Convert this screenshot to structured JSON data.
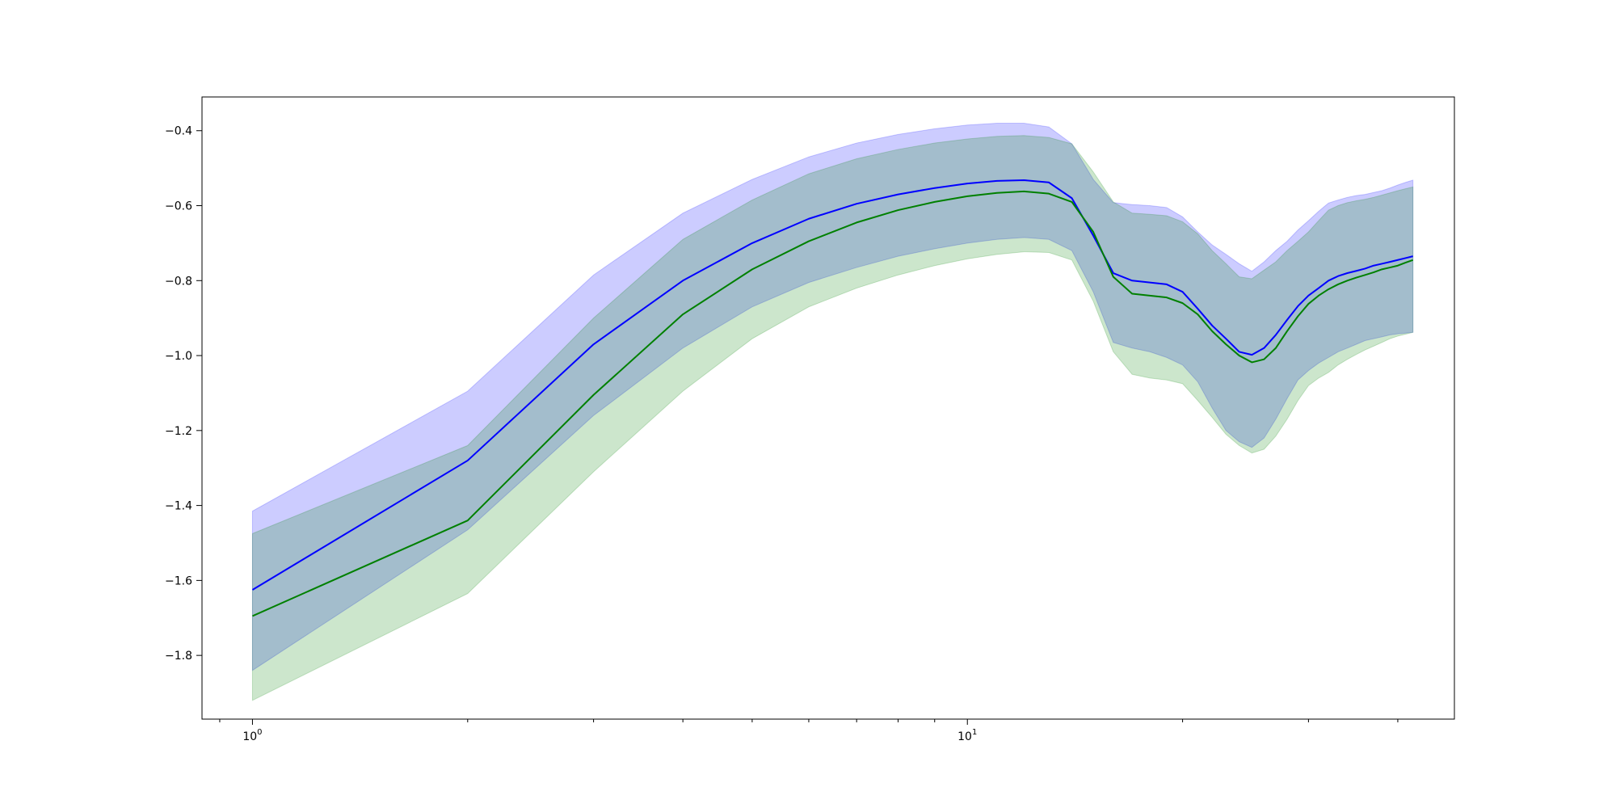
{
  "chart_data": {
    "type": "line",
    "xscale": "log",
    "xlim": [
      0.85,
      48
    ],
    "ylim": [
      -1.97,
      -0.31
    ],
    "grid": false,
    "xticks": [
      {
        "value": 1,
        "base": "10",
        "exp": "0"
      },
      {
        "value": 10,
        "base": "10",
        "exp": "1"
      }
    ],
    "yticks": [
      {
        "value": -0.4,
        "label": "−0.4"
      },
      {
        "value": -0.6,
        "label": "−0.6"
      },
      {
        "value": -0.8,
        "label": "−0.8"
      },
      {
        "value": -1.0,
        "label": "−1.0"
      },
      {
        "value": -1.2,
        "label": "−1.2"
      },
      {
        "value": -1.4,
        "label": "−1.4"
      },
      {
        "value": -1.6,
        "label": "−1.6"
      },
      {
        "value": -1.8,
        "label": "−1.8"
      }
    ],
    "x": [
      1,
      2,
      3,
      4,
      5,
      6,
      7,
      8,
      9,
      10,
      11,
      12,
      13,
      14,
      15,
      16,
      17,
      18,
      19,
      20,
      21,
      22,
      23,
      24,
      25,
      26,
      27,
      28,
      29,
      30,
      31,
      32,
      33,
      34,
      35,
      36,
      37,
      38,
      39,
      40,
      41,
      42
    ],
    "series": [
      {
        "color": "#0000ff",
        "band_color": "#0000ff",
        "band_opacity": 0.2,
        "mean": [
          -1.625,
          -1.28,
          -0.97,
          -0.8,
          -0.7,
          -0.635,
          -0.595,
          -0.57,
          -0.553,
          -0.541,
          -0.534,
          -0.532,
          -0.538,
          -0.58,
          -0.68,
          -0.78,
          -0.8,
          -0.805,
          -0.81,
          -0.83,
          -0.875,
          -0.92,
          -0.955,
          -0.99,
          -0.998,
          -0.98,
          -0.945,
          -0.905,
          -0.868,
          -0.84,
          -0.82,
          -0.8,
          -0.788,
          -0.78,
          -0.774,
          -0.768,
          -0.76,
          -0.755,
          -0.75,
          -0.745,
          -0.74,
          -0.735
        ],
        "upper": [
          -1.415,
          -1.095,
          -0.785,
          -0.62,
          -0.53,
          -0.47,
          -0.433,
          -0.41,
          -0.395,
          -0.385,
          -0.38,
          -0.38,
          -0.39,
          -0.435,
          -0.53,
          -0.592,
          -0.597,
          -0.6,
          -0.605,
          -0.63,
          -0.67,
          -0.705,
          -0.73,
          -0.755,
          -0.775,
          -0.75,
          -0.72,
          -0.695,
          -0.665,
          -0.64,
          -0.615,
          -0.593,
          -0.585,
          -0.578,
          -0.573,
          -0.57,
          -0.565,
          -0.56,
          -0.553,
          -0.545,
          -0.538,
          -0.532
        ],
        "lower": [
          -1.84,
          -1.465,
          -1.16,
          -0.98,
          -0.87,
          -0.805,
          -0.765,
          -0.735,
          -0.715,
          -0.7,
          -0.69,
          -0.685,
          -0.69,
          -0.72,
          -0.83,
          -0.965,
          -0.98,
          -0.99,
          -1.005,
          -1.025,
          -1.07,
          -1.14,
          -1.2,
          -1.23,
          -1.245,
          -1.22,
          -1.17,
          -1.115,
          -1.065,
          -1.04,
          -1.02,
          -1.005,
          -0.99,
          -0.98,
          -0.97,
          -0.96,
          -0.955,
          -0.95,
          -0.945,
          -0.942,
          -0.94,
          -0.938
        ]
      },
      {
        "color": "#008000",
        "band_color": "#008000",
        "band_opacity": 0.2,
        "mean": [
          -1.695,
          -1.44,
          -1.105,
          -0.89,
          -0.77,
          -0.695,
          -0.645,
          -0.612,
          -0.59,
          -0.575,
          -0.566,
          -0.562,
          -0.568,
          -0.59,
          -0.67,
          -0.79,
          -0.835,
          -0.84,
          -0.845,
          -0.86,
          -0.89,
          -0.935,
          -0.97,
          -1.0,
          -1.018,
          -1.01,
          -0.98,
          -0.935,
          -0.895,
          -0.862,
          -0.84,
          -0.823,
          -0.81,
          -0.8,
          -0.792,
          -0.785,
          -0.778,
          -0.77,
          -0.765,
          -0.76,
          -0.752,
          -0.745
        ],
        "upper": [
          -1.475,
          -1.24,
          -0.9,
          -0.69,
          -0.585,
          -0.515,
          -0.475,
          -0.45,
          -0.433,
          -0.422,
          -0.415,
          -0.413,
          -0.418,
          -0.435,
          -0.51,
          -0.59,
          -0.62,
          -0.623,
          -0.627,
          -0.643,
          -0.675,
          -0.72,
          -0.755,
          -0.79,
          -0.795,
          -0.772,
          -0.75,
          -0.72,
          -0.695,
          -0.67,
          -0.64,
          -0.612,
          -0.6,
          -0.592,
          -0.587,
          -0.583,
          -0.578,
          -0.572,
          -0.566,
          -0.56,
          -0.555,
          -0.55
        ],
        "lower": [
          -1.92,
          -1.635,
          -1.31,
          -1.095,
          -0.955,
          -0.87,
          -0.82,
          -0.785,
          -0.76,
          -0.742,
          -0.73,
          -0.723,
          -0.725,
          -0.745,
          -0.855,
          -0.99,
          -1.05,
          -1.06,
          -1.065,
          -1.075,
          -1.12,
          -1.165,
          -1.21,
          -1.24,
          -1.26,
          -1.25,
          -1.215,
          -1.17,
          -1.12,
          -1.08,
          -1.06,
          -1.045,
          -1.025,
          -1.01,
          -0.997,
          -0.985,
          -0.975,
          -0.965,
          -0.955,
          -0.948,
          -0.943,
          -0.938
        ]
      }
    ]
  }
}
